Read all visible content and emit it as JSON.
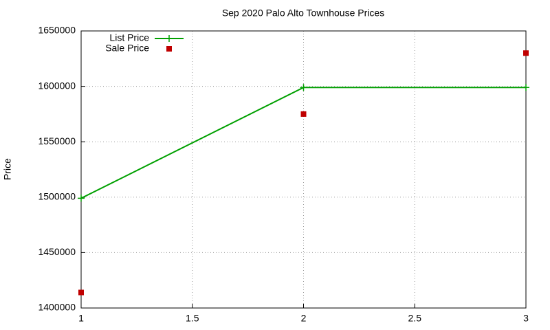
{
  "chart_data": {
    "type": "line",
    "title": "Sep 2020 Palo Alto Townhouse Prices",
    "ylabel": "Price",
    "x": [
      1,
      2,
      3
    ],
    "series": [
      {
        "name": "List Price",
        "color": "#00a000",
        "mode": "lines+points",
        "values": [
          1499000,
          1599000,
          1599000
        ]
      },
      {
        "name": "Sale Price",
        "color": "#c00000",
        "mode": "points",
        "values": [
          1414000,
          1575000,
          1630000
        ]
      }
    ],
    "xlim": [
      1,
      3
    ],
    "xticks": [
      1,
      1.5,
      2,
      2.5,
      3
    ],
    "ylim": [
      1400000,
      1650000
    ],
    "yticks": [
      1400000,
      1450000,
      1500000,
      1550000,
      1600000,
      1650000
    ],
    "grid": true,
    "legend": "top-left"
  }
}
